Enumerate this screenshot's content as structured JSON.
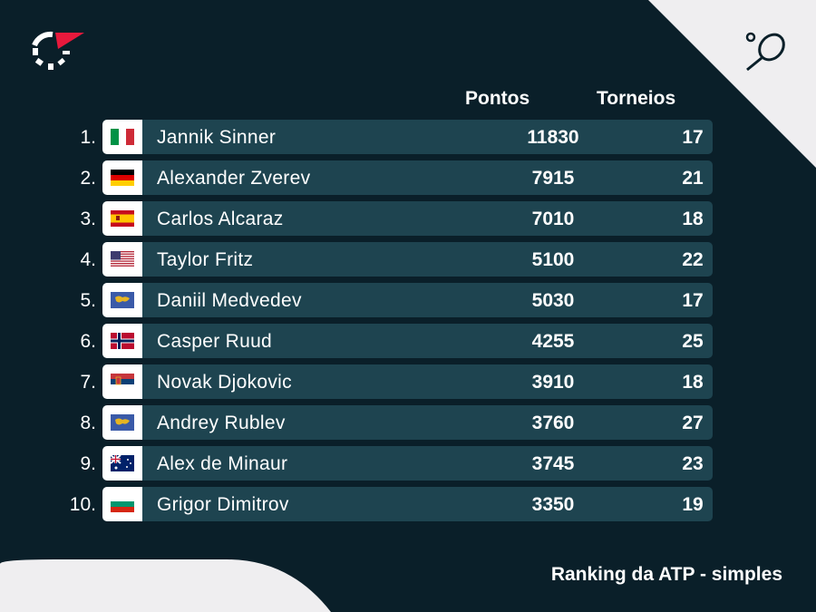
{
  "header": {
    "points_label": "Pontos",
    "tournaments_label": "Torneios"
  },
  "footer": {
    "caption": "Ranking da ATP - simples"
  },
  "colors": {
    "background": "#0a1f29",
    "row": "#1e4450",
    "accent": "#e8193c",
    "corner": "#efeef0"
  },
  "icons": {
    "logo": "flashscore-logo",
    "sport": "tennis-racket-icon"
  },
  "rows": [
    {
      "rank": "1.",
      "flag": "italy",
      "name": "Jannik Sinner",
      "points": "11830",
      "tournaments": "17"
    },
    {
      "rank": "2.",
      "flag": "germany",
      "name": "Alexander Zverev",
      "points": "7915",
      "tournaments": "21"
    },
    {
      "rank": "3.",
      "flag": "spain",
      "name": "Carlos Alcaraz",
      "points": "7010",
      "tournaments": "18"
    },
    {
      "rank": "4.",
      "flag": "usa",
      "name": "Taylor Fritz",
      "points": "5100",
      "tournaments": "22"
    },
    {
      "rank": "5.",
      "flag": "neutral",
      "name": "Daniil Medvedev",
      "points": "5030",
      "tournaments": "17"
    },
    {
      "rank": "6.",
      "flag": "norway",
      "name": "Casper Ruud",
      "points": "4255",
      "tournaments": "25"
    },
    {
      "rank": "7.",
      "flag": "serbia",
      "name": "Novak Djokovic",
      "points": "3910",
      "tournaments": "18"
    },
    {
      "rank": "8.",
      "flag": "neutral",
      "name": "Andrey Rublev",
      "points": "3760",
      "tournaments": "27"
    },
    {
      "rank": "9.",
      "flag": "australia",
      "name": "Alex de Minaur",
      "points": "3745",
      "tournaments": "23"
    },
    {
      "rank": "10.",
      "flag": "bulgaria",
      "name": "Grigor Dimitrov",
      "points": "3350",
      "tournaments": "19"
    }
  ]
}
